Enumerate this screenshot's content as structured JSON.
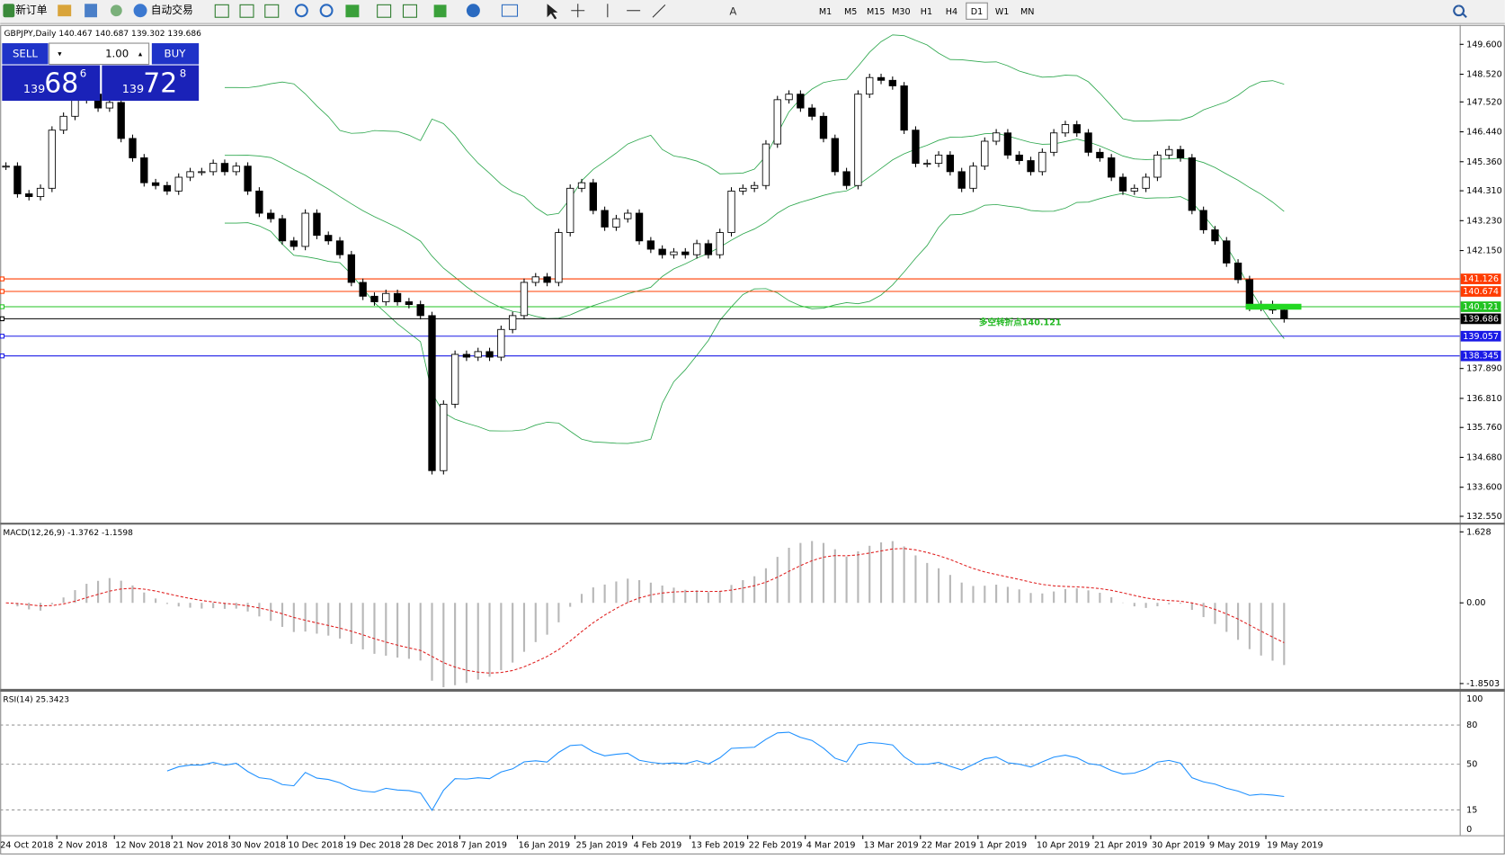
{
  "toolbar": {
    "new_order": "新订单",
    "auto_trading": "自动交易",
    "periods": [
      "M1",
      "M5",
      "M15",
      "M30",
      "H1",
      "H4",
      "D1",
      "W1",
      "MN"
    ],
    "active_period": "D1"
  },
  "trade_panel": {
    "sell": "SELL",
    "buy": "BUY",
    "lot": "1.00",
    "sell_price": {
      "big_figure": "139",
      "pips": "68",
      "fraction": "6"
    },
    "buy_price": {
      "big_figure": "139",
      "pips": "72",
      "fraction": "8"
    }
  },
  "chart": {
    "header": "GBPJPY,Daily  140.467 140.687 139.302 139.686",
    "yticks": [
      {
        "value": 149.6,
        "label": "149.600"
      },
      {
        "value": 148.52,
        "label": "148.520"
      },
      {
        "value": 147.52,
        "label": "147.520"
      },
      {
        "value": 146.44,
        "label": "146.440"
      },
      {
        "value": 145.36,
        "label": "145.360"
      },
      {
        "value": 144.31,
        "label": "144.310"
      },
      {
        "value": 143.23,
        "label": "143.230"
      },
      {
        "value": 142.15,
        "label": "142.150"
      },
      {
        "value": 137.89,
        "label": "137.890"
      },
      {
        "value": 136.81,
        "label": "136.810"
      },
      {
        "value": 135.76,
        "label": "135.760"
      },
      {
        "value": 134.68,
        "label": "134.680"
      },
      {
        "value": 133.6,
        "label": "133.600"
      },
      {
        "value": 132.55,
        "label": "132.550"
      }
    ],
    "ylim": [
      132.3,
      150.3
    ],
    "levels": [
      {
        "price": 141.126,
        "color": "#ff3c00"
      },
      {
        "price": 140.674,
        "color": "#ff3c00"
      },
      {
        "price": 140.121,
        "color": "#22c322"
      },
      {
        "price": 139.686,
        "color": "#000000"
      },
      {
        "price": 139.057,
        "color": "#1a1ae6"
      },
      {
        "price": 138.345,
        "color": "#1a1ae6"
      }
    ],
    "annotation": "多空转折点140.121",
    "closes": [
      145.2,
      144.2,
      144.1,
      144.4,
      146.5,
      147,
      147.6,
      147.8,
      147.3,
      147.5,
      146.2,
      145.5,
      144.6,
      144.5,
      144.3,
      144.8,
      145,
      145,
      145.3,
      145,
      145.2,
      144.3,
      143.5,
      143.3,
      142.5,
      142.3,
      143.5,
      142.7,
      142.5,
      142,
      141,
      140.5,
      140.3,
      140.6,
      140.3,
      140.2,
      139.8,
      134.2,
      136.6,
      138.4,
      138.3,
      138.5,
      138.3,
      139.3,
      139.8,
      141,
      141.2,
      141,
      142.8,
      144.4,
      144.6,
      143.6,
      143,
      143.3,
      143.5,
      142.5,
      142.2,
      142,
      142.1,
      142,
      142.4,
      142,
      142.8,
      144.3,
      144.4,
      144.5,
      146,
      147.6,
      147.8,
      147.3,
      147,
      146.2,
      145,
      144.5,
      147.8,
      148.4,
      148.3,
      148.1,
      146.5,
      145.3,
      145.3,
      145.6,
      145,
      144.4,
      145.2,
      146.1,
      146.4,
      145.6,
      145.4,
      145,
      145.7,
      146.4,
      146.7,
      146.4,
      145.7,
      145.5,
      144.8,
      144.3,
      144.4,
      144.8,
      145.6,
      145.8,
      145.5,
      143.6,
      142.9,
      142.5,
      141.7,
      141.1,
      140.1,
      140.2,
      140,
      139.686
    ],
    "dates": [
      "24 Oct 2018",
      "2 Nov 2018",
      "12 Nov 2018",
      "21 Nov 2018",
      "30 Nov 2018",
      "10 Dec 2018",
      "19 Dec 2018",
      "28 Dec 2018",
      "7 Jan 2019",
      "16 Jan 2019",
      "25 Jan 2019",
      "4 Feb 2019",
      "13 Feb 2019",
      "22 Feb 2019",
      "4 Mar 2019",
      "13 Mar 2019",
      "22 Mar 2019",
      "1 Apr 2019",
      "10 Apr 2019",
      "21 Apr 2019",
      "30 Apr 2019",
      "9 May 2019",
      "19 May 2019"
    ]
  },
  "macd": {
    "label": "MACD(12,26,9) -1.3762 -1.1598",
    "yticks": [
      1.628,
      {
        "value": 0,
        "label": "0.00"
      },
      -1.8503
    ]
  },
  "rsi": {
    "label": "RSI(14) 25.3423",
    "yticks": [
      100,
      80,
      50,
      15,
      0
    ]
  }
}
